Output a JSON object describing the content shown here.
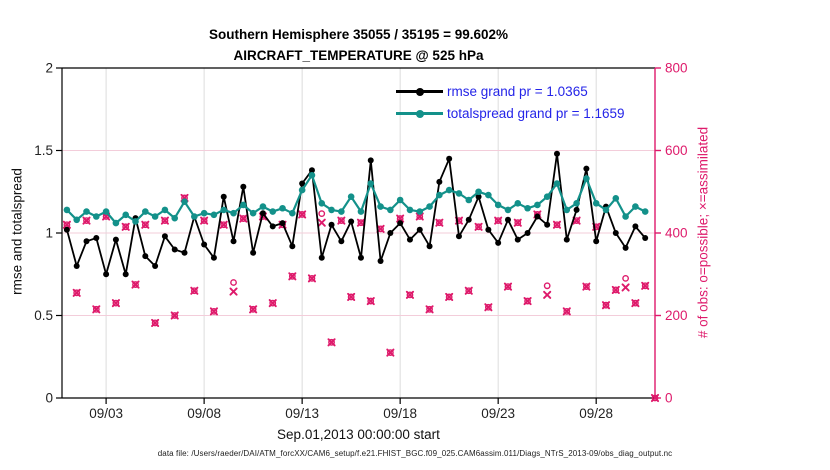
{
  "colors": {
    "rmse": "#000000",
    "totalspread": "#13918A",
    "obs": "#DE1A6B",
    "legend_text": "#2424E8",
    "grid_horizontal": "#F3CDDA",
    "grid_vertical": "#DCDCDC",
    "tick_text": "#222222",
    "background": "#FFFFFF"
  },
  "legend": {
    "rmse_label": "rmse grand pr = 1.0365",
    "totalspread_label": "totalspread grand pr = 1.1659"
  },
  "caption": "data file: /Users/raeder/DAI/ATM_forcXX/CAM6_setup/f.e21.FHIST_BGC.f09_025.CAM6assim.011/Diags_NTrS_2013-09/obs_diag_output.nc",
  "chart_data": {
    "type": "line",
    "title": "Southern Hemisphere 35055 / 35195 = 99.602%",
    "subtitle": "AIRCRAFT_TEMPERATURE @ 525 hPa",
    "xlabel": "Sep.01,2013 00:00:00 start",
    "ylabel_left": "rmse and totalspread",
    "ylabel_right": "# of obs: o=possible; ×=assimilated",
    "ylim_left": [
      0,
      2
    ],
    "yticks_left": [
      0,
      0.5,
      1,
      1.5,
      2
    ],
    "ytick_labels_left": [
      "0",
      "0.5",
      "1",
      "1.5",
      "2"
    ],
    "ylim_right": [
      0,
      800
    ],
    "yticks_right": [
      0,
      200,
      400,
      600,
      800
    ],
    "ytick_labels_right": [
      "0",
      "200",
      "400",
      "600",
      "800"
    ],
    "x_days_range": [
      -0.25,
      30
    ],
    "x_ticks": [
      {
        "t": 2,
        "label": "09/03"
      },
      {
        "t": 7,
        "label": "09/08"
      },
      {
        "t": 12,
        "label": "09/13"
      },
      {
        "t": 17,
        "label": "09/18"
      },
      {
        "t": 22,
        "label": "09/23"
      },
      {
        "t": 27,
        "label": "09/28"
      }
    ],
    "grid_y_left_values": [
      0.5,
      1.0,
      1.5
    ],
    "sample_interval_days": 0.5,
    "series": [
      {
        "name": "rmse",
        "grand_mean": 1.0365,
        "axis": "left",
        "values": [
          1.02,
          0.8,
          0.95,
          0.97,
          0.75,
          0.96,
          0.75,
          1.09,
          0.86,
          0.8,
          0.98,
          0.9,
          0.88,
          1.1,
          0.93,
          0.85,
          1.22,
          0.95,
          1.28,
          0.88,
          1.12,
          1.04,
          1.06,
          0.92,
          1.3,
          1.38,
          0.85,
          1.05,
          0.95,
          1.07,
          0.85,
          1.44,
          0.83,
          1.0,
          1.06,
          0.96,
          1.02,
          0.92,
          1.31,
          1.45,
          0.98,
          1.08,
          1.22,
          1.02,
          0.94,
          1.08,
          0.96,
          1.0,
          1.1,
          1.05,
          1.48,
          0.96,
          1.14,
          1.39,
          0.95,
          1.16,
          1.0,
          0.91,
          1.04,
          0.97
        ]
      },
      {
        "name": "totalspread",
        "grand_mean": 1.1659,
        "axis": "left",
        "values": [
          1.14,
          1.08,
          1.13,
          1.1,
          1.13,
          1.06,
          1.11,
          1.07,
          1.13,
          1.1,
          1.14,
          1.09,
          1.19,
          1.1,
          1.12,
          1.11,
          1.14,
          1.12,
          1.17,
          1.12,
          1.16,
          1.13,
          1.15,
          1.12,
          1.26,
          1.35,
          1.18,
          1.14,
          1.13,
          1.22,
          1.13,
          1.3,
          1.16,
          1.14,
          1.2,
          1.14,
          1.13,
          1.16,
          1.23,
          1.26,
          1.24,
          1.2,
          1.25,
          1.23,
          1.17,
          1.14,
          1.18,
          1.15,
          1.17,
          1.22,
          1.3,
          1.14,
          1.18,
          1.33,
          1.18,
          1.14,
          1.21,
          1.1,
          1.16,
          1.13
        ]
      },
      {
        "name": "obs_possible",
        "axis": "right",
        "marker": "o",
        "values": [
          420,
          255,
          430,
          215,
          440,
          230,
          415,
          275,
          420,
          182,
          430,
          200,
          485,
          260,
          430,
          210,
          420,
          280,
          435,
          215,
          440,
          230,
          420,
          295,
          445,
          290,
          447,
          135,
          430,
          245,
          425,
          235,
          410,
          110,
          435,
          250,
          440,
          215,
          425,
          245,
          430,
          260,
          415,
          220,
          430,
          270,
          425,
          235,
          445,
          272,
          420,
          210,
          430,
          270,
          415,
          225,
          262,
          290,
          230,
          272,
          0
        ]
      },
      {
        "name": "obs_assimilated",
        "axis": "right",
        "marker": "x",
        "values": [
          420,
          255,
          430,
          215,
          440,
          230,
          415,
          275,
          420,
          182,
          430,
          200,
          485,
          260,
          430,
          210,
          420,
          258,
          435,
          215,
          440,
          230,
          420,
          295,
          445,
          290,
          425,
          135,
          430,
          245,
          425,
          235,
          410,
          110,
          435,
          250,
          440,
          215,
          425,
          245,
          430,
          260,
          415,
          220,
          430,
          270,
          425,
          235,
          445,
          250,
          420,
          210,
          430,
          270,
          415,
          225,
          262,
          268,
          230,
          272,
          0
        ]
      }
    ],
    "obs_total_possible": 35195,
    "obs_total_assimilated": 35055,
    "obs_assimilated_percent": "99.602%"
  }
}
